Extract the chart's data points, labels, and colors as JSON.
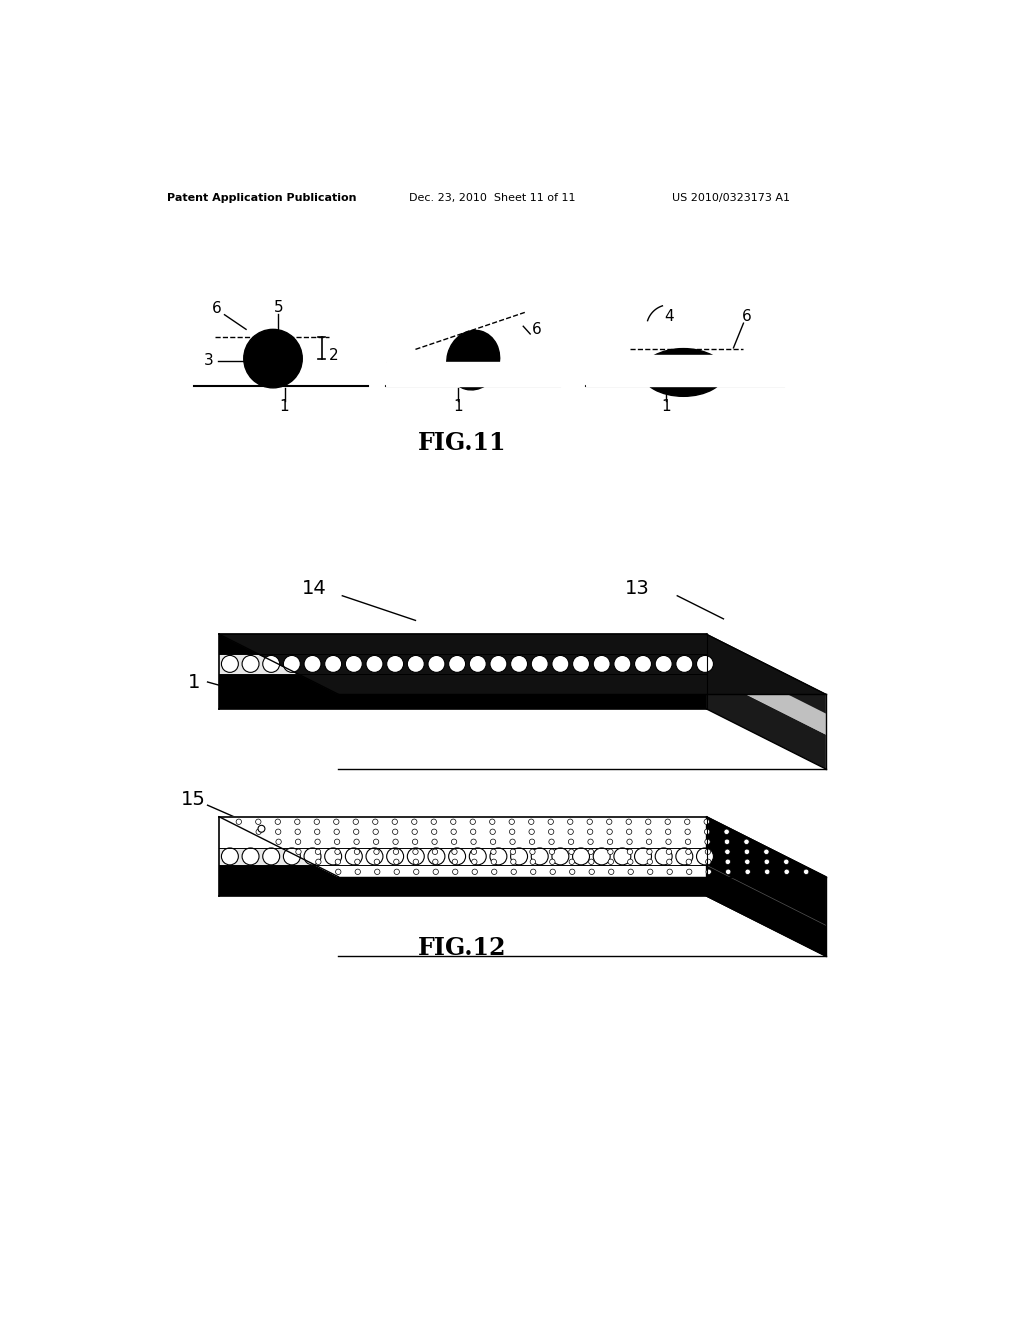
{
  "bg_color": "#ffffff",
  "header_left": "Patent Application Publication",
  "header_mid": "Dec. 23, 2010  Sheet 11 of 11",
  "header_right": "US 2010/0323173 A1",
  "fig11_label": "FIG.11",
  "fig12_label": "FIG.12"
}
